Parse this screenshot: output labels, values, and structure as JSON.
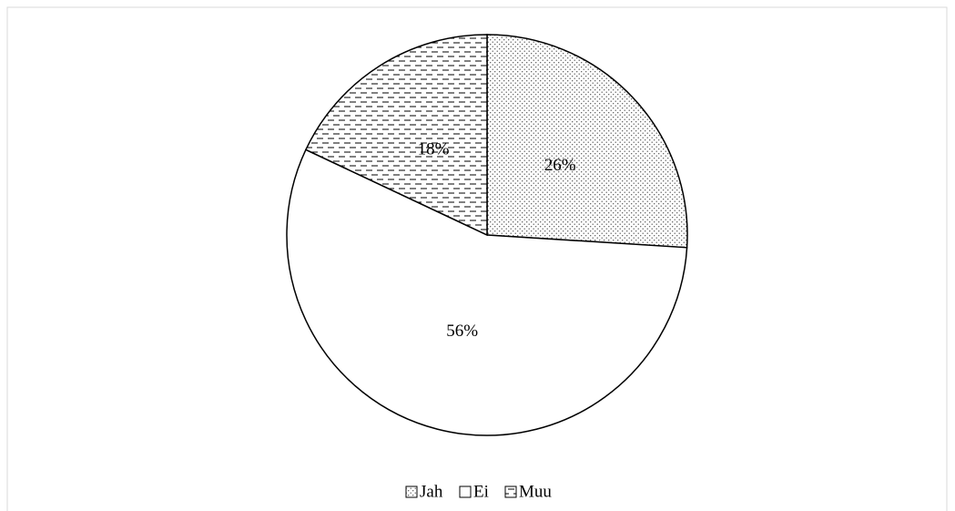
{
  "chart_data": {
    "type": "pie",
    "categories": [
      "Jah",
      "Ei",
      "Muu"
    ],
    "values": [
      26,
      56,
      18
    ],
    "value_labels": [
      "26%",
      "56%",
      "18%"
    ],
    "patterns": [
      "dots",
      "none",
      "dashes"
    ],
    "legend": "bottom"
  }
}
